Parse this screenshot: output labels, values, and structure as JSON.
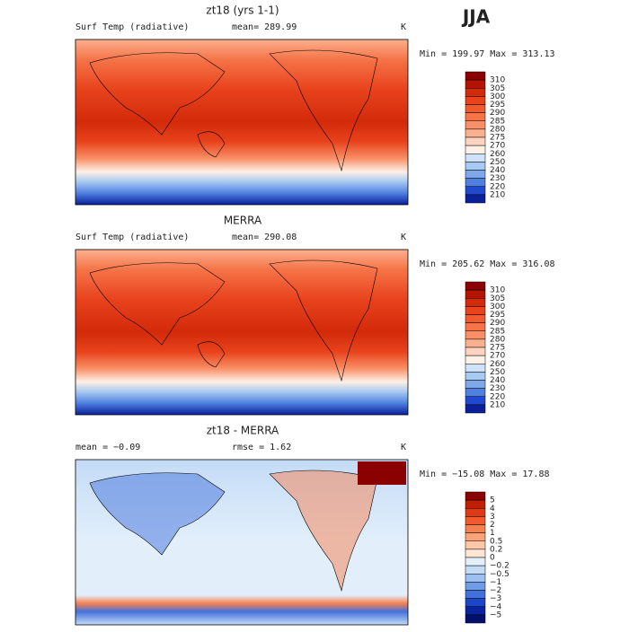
{
  "season": "JJA",
  "panels": [
    {
      "title": "zt18 (yrs 1-1)",
      "field": "Surf Temp (radiative)",
      "stat1": "mean= 289.99",
      "units": "K",
      "minmax": "Min = 199.97 Max = 313.13",
      "levels": [
        "310",
        "305",
        "300",
        "295",
        "290",
        "285",
        "280",
        "275",
        "270",
        "260",
        "250",
        "240",
        "230",
        "220",
        "210"
      ],
      "colors": [
        "#8b0000",
        "#b31500",
        "#d32a0a",
        "#e8431d",
        "#f25a2e",
        "#f67448",
        "#f98f66",
        "#fbb08f",
        "#fdd4bf",
        "#fdf0e6",
        "#cfe3f8",
        "#a8c9f1",
        "#7ea8ea",
        "#4f80e0",
        "#2149cf",
        "#0a1f9a"
      ]
    },
    {
      "title": "MERRA",
      "field": "Surf Temp (radiative)",
      "stat1": "mean= 290.08",
      "units": "K",
      "minmax": "Min = 205.62 Max = 316.08",
      "levels": [
        "310",
        "305",
        "300",
        "295",
        "290",
        "285",
        "280",
        "275",
        "270",
        "260",
        "250",
        "240",
        "230",
        "220",
        "210"
      ],
      "colors": [
        "#8b0000",
        "#b31500",
        "#d32a0a",
        "#e8431d",
        "#f25a2e",
        "#f67448",
        "#f98f66",
        "#fbb08f",
        "#fdd4bf",
        "#fdf0e6",
        "#cfe3f8",
        "#a8c9f1",
        "#7ea8ea",
        "#4f80e0",
        "#2149cf",
        "#0a1f9a"
      ]
    },
    {
      "title": "zt18 - MERRA",
      "stat1": "mean =   −0.09",
      "stat2": "rmse =    1.62",
      "units": "K",
      "minmax": "Min = −15.08 Max =   17.88",
      "levels": [
        "5",
        "4",
        "3",
        "2",
        "1",
        "0.5",
        "0.2",
        "0",
        "−0.2",
        "−0.5",
        "−1",
        "−2",
        "−3",
        "−4",
        "−5"
      ],
      "colors": [
        "#8b0000",
        "#c01e00",
        "#e03a14",
        "#f05a2e",
        "#f7804f",
        "#fba47c",
        "#fdc7a8",
        "#fde6d6",
        "#e2effb",
        "#c4dbf6",
        "#9cc0ef",
        "#6f9be7",
        "#4271dc",
        "#1c45c9",
        "#0a24a0",
        "#050f6e"
      ]
    }
  ]
}
